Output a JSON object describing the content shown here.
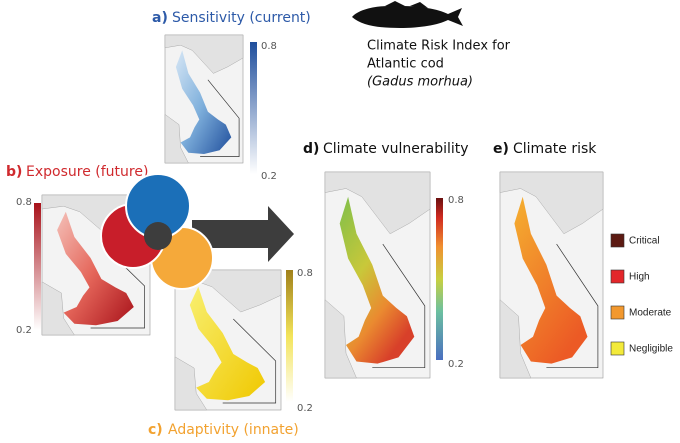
{
  "title": {
    "lines": [
      "Climate Risk Index for",
      "Atlantic cod",
      "(Gadus morhua)"
    ]
  },
  "panels": [
    {
      "letter": "a)",
      "label": "Sensitivity (current)",
      "color": "#2d5aa8",
      "scale": {
        "max": 0.8,
        "min": 0.2
      }
    },
    {
      "letter": "b)",
      "label": "Exposure (future)",
      "color": "#d02a2e",
      "scale": {
        "max": 0.8,
        "min": 0.2
      }
    },
    {
      "letter": "c)",
      "label": "Adaptivity (innate)",
      "color": "#f2a230",
      "scale": {
        "max": 0.8,
        "min": 0.2
      }
    },
    {
      "letter": "d)",
      "label": "Climate vulnerability",
      "color": "#111111",
      "scale": {
        "max": 0.8,
        "min": 0.2
      }
    },
    {
      "letter": "e)",
      "label": "Climate risk",
      "color": "#111111"
    }
  ],
  "legend": [
    {
      "label": "Critical",
      "color": "#5c1a12"
    },
    {
      "label": "High",
      "color": "#e3262a"
    },
    {
      "label": "Moderate",
      "color": "#f2982e"
    },
    {
      "label": "Negligible",
      "color": "#f3ea3a"
    }
  ]
}
